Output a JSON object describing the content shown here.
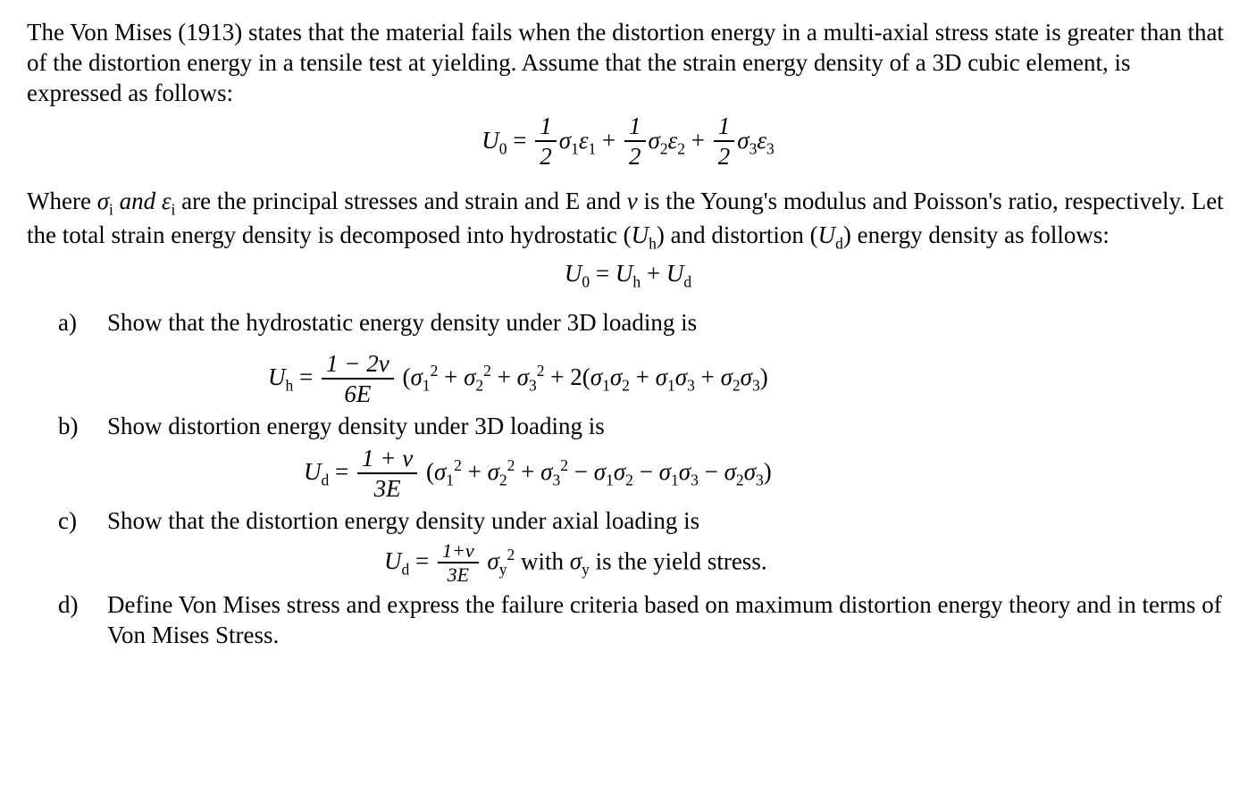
{
  "colors": {
    "text": "#000000",
    "background": "#ffffff"
  },
  "typography": {
    "font_family": "Times New Roman",
    "body_fontsize_pt": 20,
    "equation_fontsize_pt": 20
  },
  "intro": {
    "text": "The Von Mises (1913) states that the material fails when the distortion energy in a multi-axial stress state is greater than that of the distortion energy in a tensile test at yielding. Assume that the strain energy density of a 3D cubic element, is expressed as follows:"
  },
  "eq_U0": {
    "lhs": "U",
    "lhs_sub": "0",
    "term1": {
      "num": "1",
      "den": "2",
      "s": "σ",
      "si": "1",
      "e": "ε",
      "ei": "1"
    },
    "term2": {
      "num": "1",
      "den": "2",
      "s": "σ",
      "si": "2",
      "e": "ε",
      "ei": "2"
    },
    "term3": {
      "num": "1",
      "den": "2",
      "s": "σ",
      "si": "3",
      "e": "ε",
      "ei": "3"
    }
  },
  "where": {
    "pre": "Where ",
    "sigma": "σ",
    "sigma_i": "i",
    "and_word": " and ",
    "eps": "ε",
    "eps_i": "i",
    "post1": " are the principal stresses and strain and E and ",
    "v": "v",
    "post2": "  is the Young's modulus and Poisson's ratio, respectively. Let the total strain energy density is decomposed into hydrostatic (",
    "Uh": "U",
    "Uh_sub": "h",
    "post3": ") and distortion (",
    "Ud": "U",
    "Ud_sub": "d",
    "post4": ") energy density as follows:"
  },
  "eq_decomp": {
    "lhs": "U",
    "lhs_sub": "0",
    "a": "U",
    "a_sub": "h",
    "b": "U",
    "b_sub": "d"
  },
  "items": {
    "a": {
      "label": "a)",
      "text": "Show that the hydrostatic energy density under 3D loading is",
      "eq": {
        "lhs": "U",
        "lhs_sub": "h",
        "frac_num": "1 − 2v",
        "frac_den": "6E",
        "body_pre": "(",
        "s1": "σ",
        "s1i": "1",
        "p2a": "2",
        "s2": "σ",
        "s2i": "2",
        "p2b": "2",
        "s3": "σ",
        "s3i": "3",
        "p2c": "2",
        "mid": " + 2(",
        "t12a": "σ",
        "t12ai": "1",
        "t12b": "σ",
        "t12bi": "2",
        "t13a": "σ",
        "t13ai": "1",
        "t13b": "σ",
        "t13bi": "3",
        "t23a": "σ",
        "t23ai": "2",
        "t23b": "σ",
        "t23bi": "3",
        "end": ")"
      }
    },
    "b": {
      "label": "b)",
      "text": "Show distortion energy density under 3D loading is",
      "eq": {
        "lhs": "U",
        "lhs_sub": "d",
        "frac_num": "1 + v",
        "frac_den": "3E",
        "body_pre": "(",
        "s1": "σ",
        "s1i": "1",
        "p2a": "2",
        "s2": "σ",
        "s2i": "2",
        "p2b": "2",
        "s3": "σ",
        "s3i": "3",
        "p2c": "2",
        "t12a": "σ",
        "t12ai": "1",
        "t12b": "σ",
        "t12bi": "2",
        "t13a": "σ",
        "t13ai": "1",
        "t13b": "σ",
        "t13bi": "3",
        "t23a": "σ",
        "t23ai": "2",
        "t23b": "σ",
        "t23bi": "3",
        "end": ")"
      }
    },
    "c": {
      "label": "c)",
      "text": "Show that the distortion energy density under axial loading is",
      "eq": {
        "lhs": "U",
        "lhs_sub": "d",
        "frac_num": "1+v",
        "frac_den": "3E",
        "sy": "σ",
        "sy_sub": "y",
        "sy_sup": "2",
        "tail_pre": "  with ",
        "sy2": "σ",
        "sy2_sub": "y",
        "tail_post": " is the yield stress."
      }
    },
    "d": {
      "label": "d)",
      "text": "Define Von Mises stress and express the failure criteria based on maximum distortion energy theory and in terms of Von Mises Stress."
    }
  }
}
